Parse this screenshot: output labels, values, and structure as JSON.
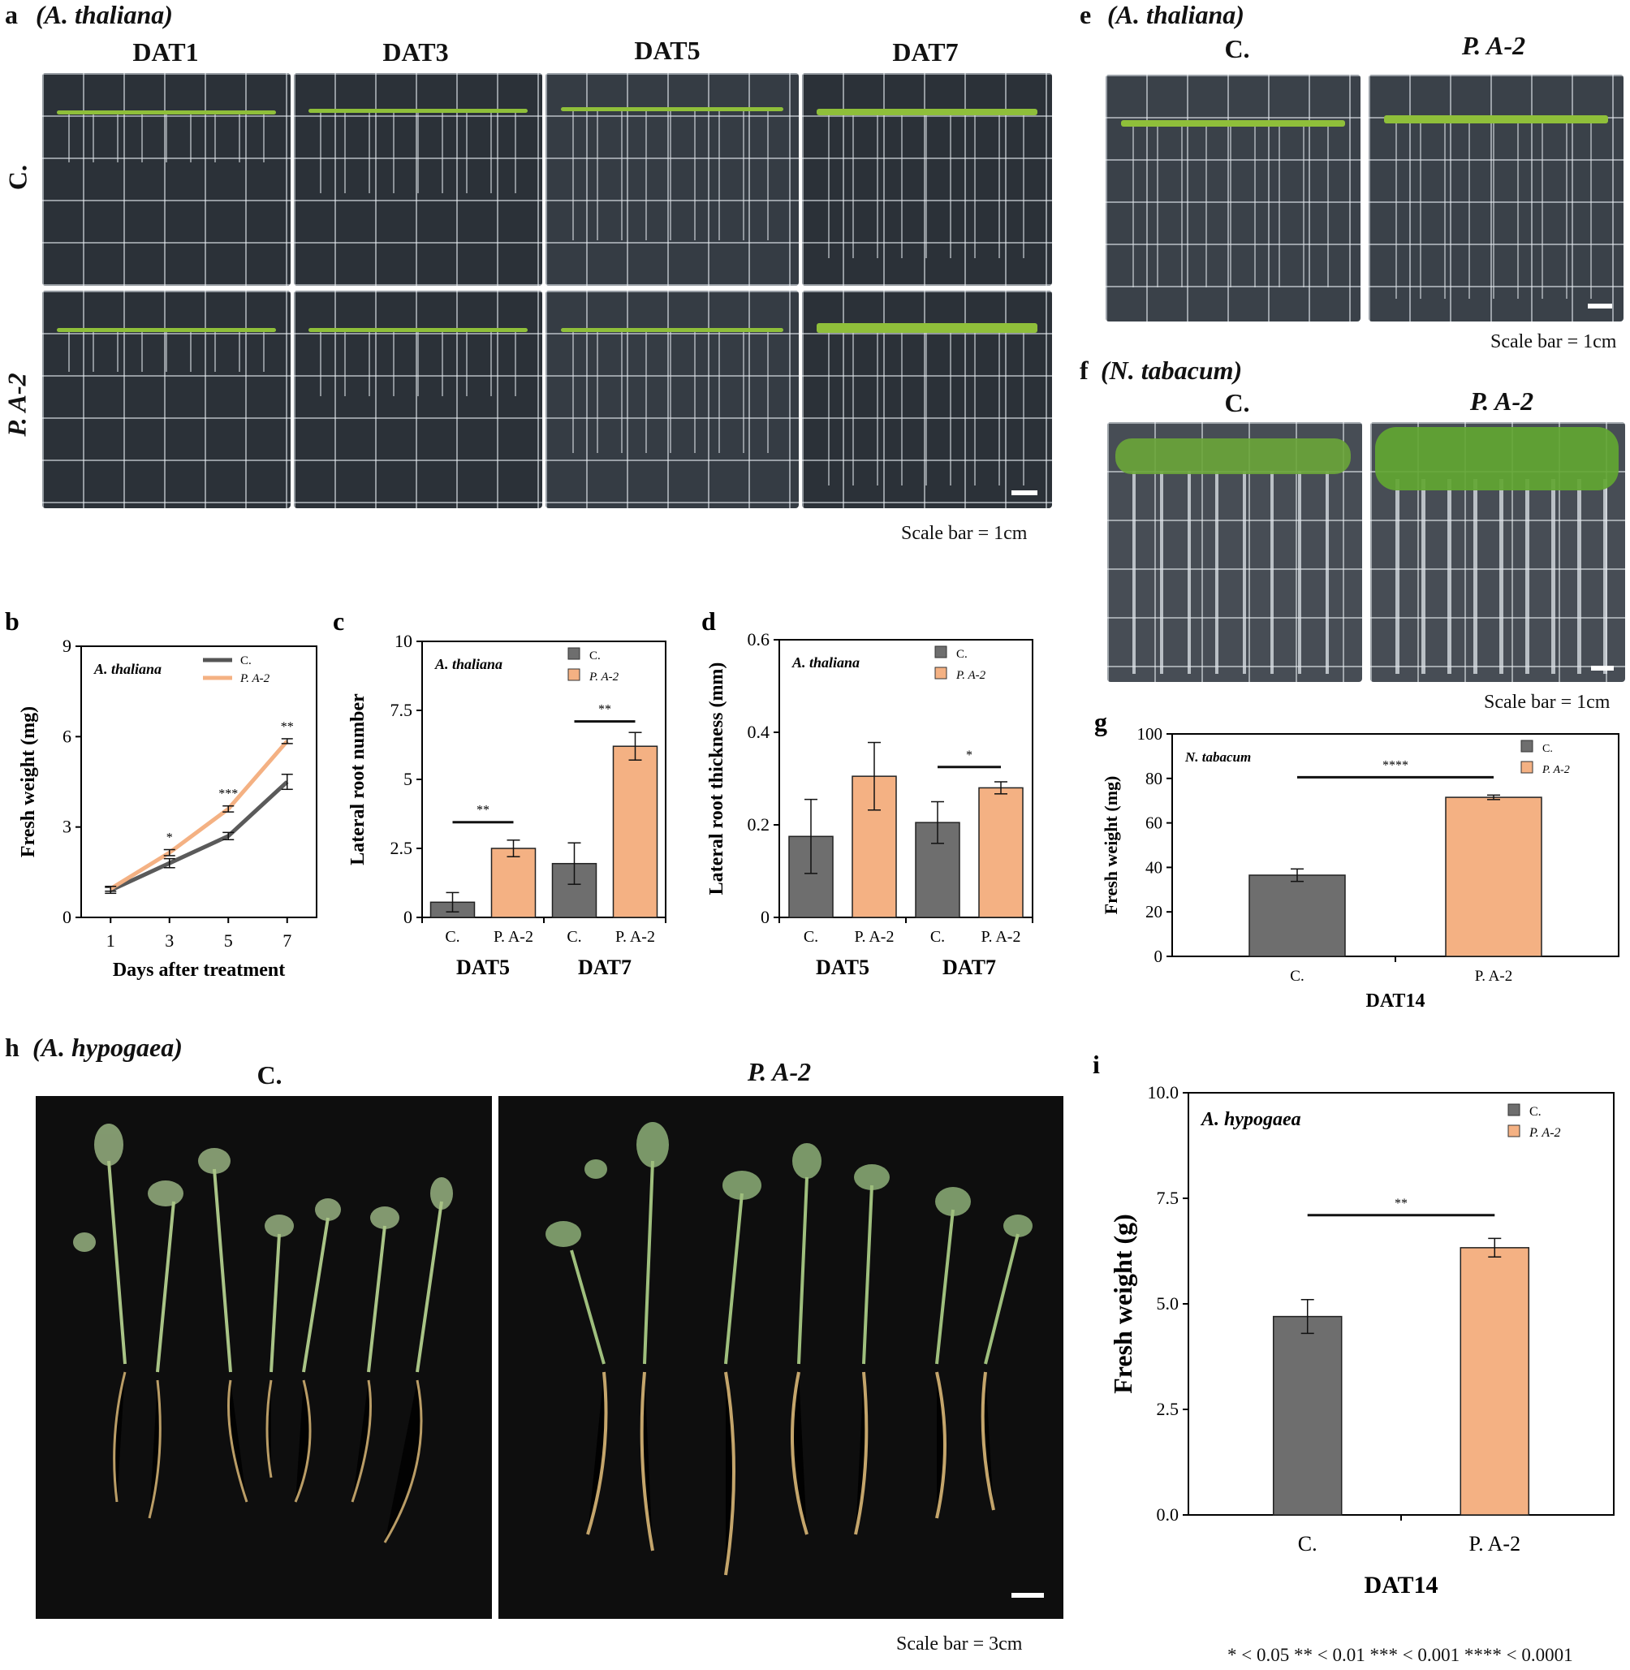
{
  "panel_a": {
    "letter": "a",
    "species": "(A. thaliana)",
    "columns": [
      "DAT1",
      "DAT3",
      "DAT5",
      "DAT7"
    ],
    "rows": [
      "C.",
      "P. A-2"
    ],
    "scale": "Scale bar = 1cm"
  },
  "panel_e": {
    "letter": "e",
    "species": "(A. thaliana)",
    "columns": [
      "C.",
      "P. A-2"
    ],
    "scale": "Scale bar = 1cm"
  },
  "panel_f": {
    "letter": "f",
    "species": "(N. tabacum)",
    "columns": [
      "C.",
      "P. A-2"
    ],
    "scale": "Scale bar = 1cm"
  },
  "panel_h": {
    "letter": "h",
    "species": "(A. hypogaea)",
    "columns": [
      "C.",
      "P. A-2"
    ],
    "scale": "Scale bar = 3cm"
  },
  "footnote": "* < 0.05 ** < 0.01 *** < 0.001 **** < 0.0001",
  "colors": {
    "control": "#6e6e6e",
    "treated": "#f4b183"
  },
  "chart_data": [
    {
      "id": "b",
      "type": "line",
      "letter": "b",
      "annotation": "A. thaliana",
      "x": [
        1,
        3,
        5,
        7
      ],
      "xlabel": "Days after treatment",
      "ylabel": "Fresh weight (mg)",
      "ylim": [
        0,
        9
      ],
      "yticks": [
        "0",
        "3",
        "6",
        "9"
      ],
      "series": [
        {
          "name": "C.",
          "values": [
            0.9,
            1.8,
            2.7,
            4.5
          ],
          "err": [
            0.1,
            0.15,
            0.12,
            0.25
          ]
        },
        {
          "name": "P. A-2",
          "values": [
            0.95,
            2.15,
            3.6,
            5.85
          ],
          "err": [
            0.08,
            0.1,
            0.1,
            0.08
          ]
        }
      ],
      "sig": [
        "",
        "*",
        "***",
        "**"
      ],
      "legend": "top-right"
    },
    {
      "id": "c",
      "type": "bar",
      "letter": "c",
      "annotation": "A. thaliana",
      "categories": [
        "C.",
        "P. A-2",
        "C.",
        "P. A-2"
      ],
      "groups": [
        "DAT5",
        "DAT7"
      ],
      "series_names": [
        "C.",
        "P. A-2"
      ],
      "values": [
        0.55,
        2.5,
        1.95,
        6.2
      ],
      "err": [
        0.35,
        0.3,
        0.75,
        0.5
      ],
      "ylabel": "Lateral root number",
      "ylim": [
        0,
        10
      ],
      "yticks": [
        "0",
        "2.5",
        "5",
        "7.5",
        "10"
      ],
      "sig": [
        {
          "pair": [
            0,
            1
          ],
          "text": "**",
          "y": 3.45
        },
        {
          "pair": [
            2,
            3
          ],
          "text": "**",
          "y": 7.1
        }
      ],
      "legend": "top-right"
    },
    {
      "id": "d",
      "type": "bar",
      "letter": "d",
      "annotation": "A. thaliana",
      "categories": [
        "C.",
        "P. A-2",
        "C.",
        "P. A-2"
      ],
      "groups": [
        "DAT5",
        "DAT7"
      ],
      "series_names": [
        "C.",
        "P. A-2"
      ],
      "values": [
        0.175,
        0.305,
        0.205,
        0.28
      ],
      "err": [
        0.08,
        0.073,
        0.045,
        0.013
      ],
      "ylabel": "Lateral root thickness (mm)",
      "ylim": [
        0,
        0.6
      ],
      "yticks": [
        "0",
        "0.2",
        "0.4",
        "0.6"
      ],
      "sig": [
        {
          "pair": [
            2,
            3
          ],
          "text": "*",
          "y": 0.325
        }
      ],
      "legend": "top-right"
    },
    {
      "id": "g",
      "type": "bar",
      "letter": "g",
      "annotation": "N. tabacum",
      "categories": [
        "C.",
        "P. A-2"
      ],
      "groups": [
        "DAT14"
      ],
      "series_names": [
        "C.",
        "P. A-2"
      ],
      "values": [
        36.5,
        71.5
      ],
      "err": [
        2.8,
        1.0
      ],
      "ylabel": "Fresh weight (mg)",
      "ylim": [
        0,
        100
      ],
      "yticks": [
        "0",
        "20",
        "40",
        "60",
        "80",
        "100"
      ],
      "sig": [
        {
          "pair": [
            0,
            1
          ],
          "text": "****",
          "y": 80.5
        }
      ],
      "legend": "top-right"
    },
    {
      "id": "i",
      "type": "bar",
      "letter": "i",
      "annotation": "A. hypogaea",
      "categories": [
        "C.",
        "P. A-2"
      ],
      "groups": [
        "DAT14"
      ],
      "series_names": [
        "C.",
        "P. A-2"
      ],
      "values": [
        4.7,
        6.33
      ],
      "err": [
        0.4,
        0.22
      ],
      "ylabel": "Fresh weight (g)",
      "ylim": [
        0,
        10
      ],
      "yticks": [
        "0.0",
        "2.5",
        "5.0",
        "7.5",
        "10.0"
      ],
      "sig": [
        {
          "pair": [
            0,
            1
          ],
          "text": "**",
          "y": 7.1
        }
      ],
      "legend": "top-right"
    }
  ]
}
